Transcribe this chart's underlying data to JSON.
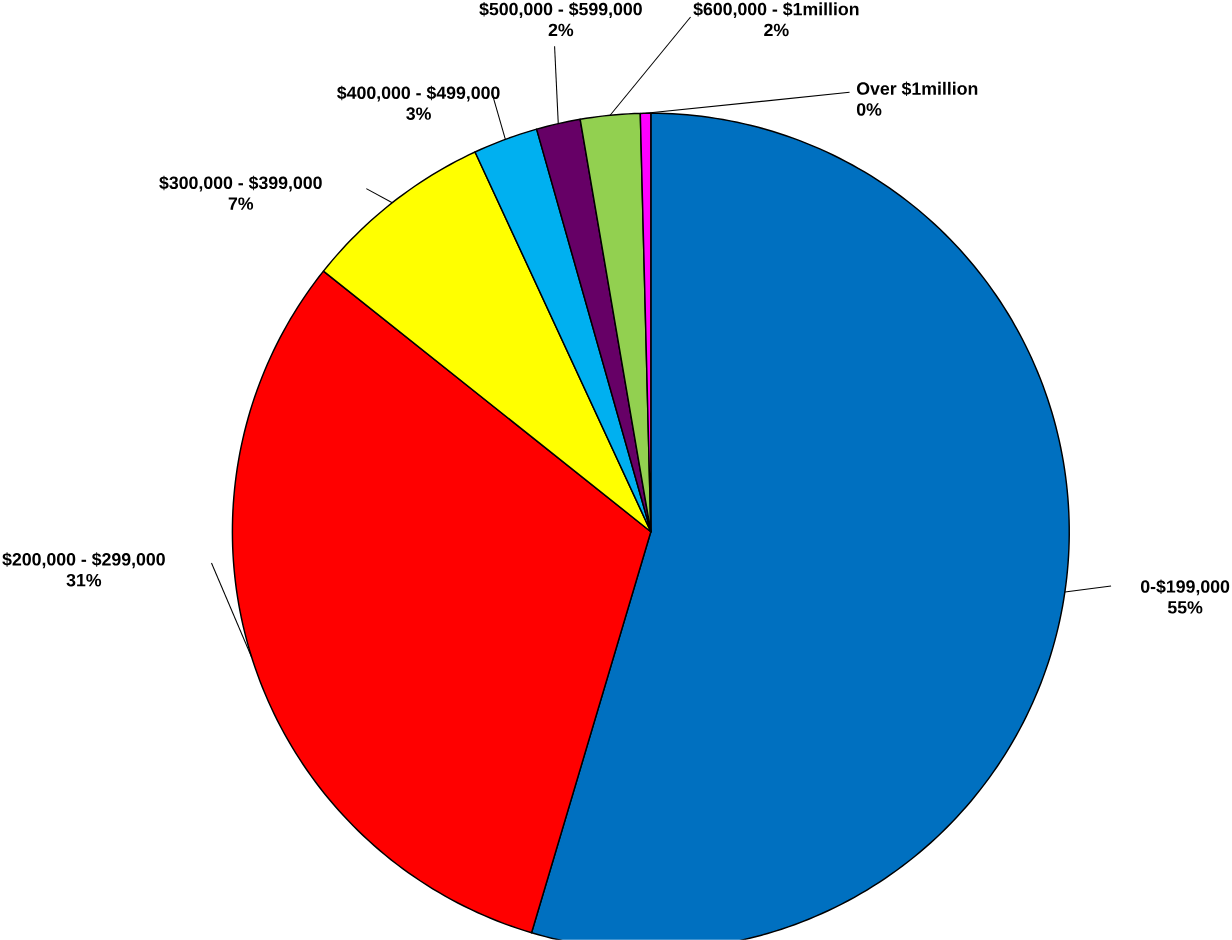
{
  "chart_data": {
    "type": "pie",
    "categories": [
      "0-$199,000",
      "$200,000 - $299,000",
      "$300,000 - $399,000",
      "$400,000 - $499,000",
      "$500,000 - $599,000",
      "$600,000 - $1million",
      "Over $1million"
    ],
    "values": [
      54.6,
      31.1,
      7.4,
      2.5,
      1.7,
      2.3,
      0.4
    ],
    "value_labels": [
      "55%",
      "31%",
      "7%",
      "3%",
      "2%",
      "2%",
      "0%"
    ],
    "colors": [
      "#0070c0",
      "#ff0000",
      "#ffff00",
      "#00b0f0",
      "#660066",
      "#92d050",
      "#ff00ff"
    ]
  }
}
